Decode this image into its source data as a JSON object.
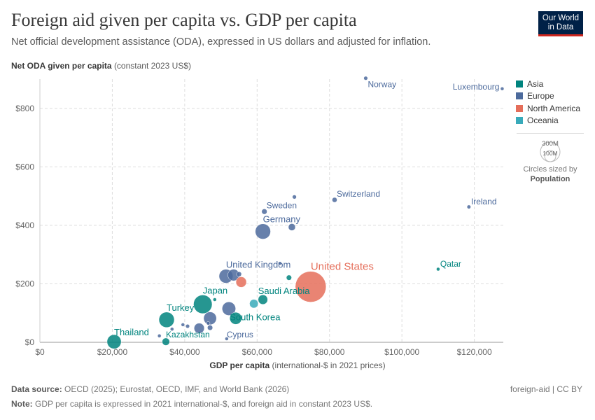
{
  "header": {
    "title": "Foreign aid given per capita vs. GDP per capita",
    "subtitle": "Net official development assistance (ODA), expressed in US dollars and adjusted for inflation.",
    "logo": "Our World in Data"
  },
  "chart_data": {
    "type": "scatter",
    "title": "Foreign aid given per capita vs. GDP per capita",
    "ylabel_bold": "Net ODA given per capita",
    "ylabel_unit": "(constant 2023 US$)",
    "xlabel_bold": "GDP per capita",
    "xlabel_unit": "(international-$ in 2021 prices)",
    "xlim": [
      0,
      128000
    ],
    "ylim": [
      0,
      900
    ],
    "xticks": [
      {
        "v": 0,
        "label": "$0"
      },
      {
        "v": 20000,
        "label": "$20,000"
      },
      {
        "v": 40000,
        "label": "$40,000"
      },
      {
        "v": 60000,
        "label": "$60,000"
      },
      {
        "v": 80000,
        "label": "$80,000"
      },
      {
        "v": 100000,
        "label": "$100,000"
      },
      {
        "v": 120000,
        "label": "$120,000"
      }
    ],
    "yticks": [
      {
        "v": 0,
        "label": "$0"
      },
      {
        "v": 200,
        "label": "$200"
      },
      {
        "v": 400,
        "label": "$400"
      },
      {
        "v": 600,
        "label": "$600"
      },
      {
        "v": 800,
        "label": "$800"
      }
    ],
    "grid": true,
    "legend_position": "right",
    "colors": {
      "Asia": "#00847e",
      "Europe": "#4c6a9c",
      "North America": "#e56e5a",
      "Oceania": "#38aaba"
    },
    "size_by": "Population",
    "size_legend": [
      "300M",
      "100M"
    ],
    "size_caption": "Circles sized by",
    "points": [
      {
        "label": "Norway",
        "x": 90000,
        "y": 903,
        "region": "Europe",
        "pop": 5.5
      },
      {
        "label": "Luxembourg",
        "x": 127700,
        "y": 867,
        "region": "Europe",
        "pop": 0.7
      },
      {
        "label": "Switzerland",
        "x": 81400,
        "y": 487,
        "region": "Europe",
        "pop": 8.9
      },
      {
        "label": "Ireland",
        "x": 118500,
        "y": 463,
        "region": "Europe",
        "pop": 5.2
      },
      {
        "label": "Qatar",
        "x": 110000,
        "y": 250,
        "region": "Asia",
        "pop": 2.9
      },
      {
        "label": "Sweden",
        "x": 62000,
        "y": 447,
        "region": "Europe",
        "pop": 10.5
      },
      {
        "label": "Germany",
        "x": 61600,
        "y": 379,
        "region": "Europe",
        "pop": 84
      },
      {
        "label": "",
        "x": 70300,
        "y": 497,
        "region": "Europe",
        "pop": 5.9
      },
      {
        "label": "",
        "x": 69600,
        "y": 394,
        "region": "Europe",
        "pop": 17.9
      },
      {
        "label": "United Kingdom",
        "x": 51400,
        "y": 226,
        "region": "Europe",
        "pop": 69
      },
      {
        "label": "",
        "x": 53500,
        "y": 230,
        "region": "Europe",
        "pop": 48
      },
      {
        "label": "",
        "x": 55000,
        "y": 233,
        "region": "Europe",
        "pop": 9
      },
      {
        "label": "",
        "x": 66300,
        "y": 270,
        "region": "Europe",
        "pop": 1.5
      },
      {
        "label": "United States",
        "x": 74800,
        "y": 190,
        "region": "North America",
        "pop": 340
      },
      {
        "label": "",
        "x": 55600,
        "y": 206,
        "region": "North America",
        "pop": 40
      },
      {
        "label": "",
        "x": 68800,
        "y": 221,
        "region": "Asia",
        "pop": 10
      },
      {
        "label": "Japan",
        "x": 45000,
        "y": 130,
        "region": "Asia",
        "pop": 124
      },
      {
        "label": "",
        "x": 48300,
        "y": 146,
        "region": "Asia",
        "pop": 1.5
      },
      {
        "label": "Saudi Arabia",
        "x": 61600,
        "y": 146,
        "region": "Asia",
        "pop": 33
      },
      {
        "label": "",
        "x": 59100,
        "y": 132,
        "region": "Oceania",
        "pop": 27
      },
      {
        "label": "South Korea",
        "x": 54100,
        "y": 82,
        "region": "Asia",
        "pop": 52
      },
      {
        "label": "",
        "x": 52200,
        "y": 115,
        "region": "Europe",
        "pop": 66
      },
      {
        "label": "",
        "x": 47000,
        "y": 82,
        "region": "Europe",
        "pop": 59
      },
      {
        "label": "",
        "x": 44000,
        "y": 48,
        "region": "Europe",
        "pop": 38
      },
      {
        "label": "",
        "x": 47000,
        "y": 50,
        "region": "Europe",
        "pop": 10
      },
      {
        "label": "",
        "x": 40800,
        "y": 55,
        "region": "Europe",
        "pop": 5.5
      },
      {
        "label": "",
        "x": 39500,
        "y": 60,
        "region": "Europe",
        "pop": 2
      },
      {
        "label": "",
        "x": 36500,
        "y": 45,
        "region": "Europe",
        "pop": 2
      },
      {
        "label": "",
        "x": 33000,
        "y": 22,
        "region": "Europe",
        "pop": 2
      },
      {
        "label": "",
        "x": 46500,
        "y": 65,
        "region": "Europe",
        "pop": 1.3
      },
      {
        "label": "Turkey",
        "x": 35000,
        "y": 77,
        "region": "Asia",
        "pop": 85
      },
      {
        "label": "Thailand",
        "x": 20500,
        "y": 2,
        "region": "Asia",
        "pop": 72
      },
      {
        "label": "Kazakhstan",
        "x": 34800,
        "y": 2,
        "region": "Asia",
        "pop": 20
      },
      {
        "label": "Cyprus",
        "x": 51600,
        "y": 12,
        "region": "Europe",
        "pop": 1.3
      }
    ]
  },
  "legend": {
    "items": [
      "Asia",
      "Europe",
      "North America",
      "Oceania"
    ]
  },
  "footer": {
    "source_label": "Data source:",
    "source": "OECD (2025); Eurostat, OECD, IMF, and World Bank (2026)",
    "note_label": "Note:",
    "note": "GDP per capita is expressed in 2021 international-$, and foreign aid in constant 2023 US$.",
    "credit": "foreign-aid | CC BY"
  }
}
